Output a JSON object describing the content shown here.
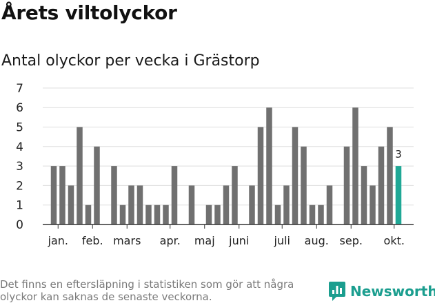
{
  "title": "Årets viltolyckor",
  "subtitle": "Antal olyckor per vecka i Grästorp",
  "footnote": "Det finns en eftersläpning i statistiken som gör att några olyckor kan saknas de senaste veckorna.",
  "brand": {
    "name": "Newsworthy",
    "icon": "newsworthy-logo-icon",
    "color": "#1b9e8f"
  },
  "chart_data": {
    "type": "bar",
    "x": [
      1,
      2,
      3,
      4,
      5,
      6,
      7,
      8,
      9,
      10,
      11,
      12,
      13,
      14,
      15,
      16,
      17,
      18,
      19,
      20,
      21,
      22,
      23,
      24,
      25,
      26,
      27,
      28,
      29,
      30,
      31,
      32,
      33,
      34,
      35,
      36,
      37,
      38,
      39,
      40,
      41
    ],
    "values": [
      3,
      3,
      2,
      5,
      1,
      4,
      0,
      3,
      1,
      2,
      2,
      1,
      1,
      1,
      3,
      0,
      2,
      0,
      1,
      1,
      2,
      3,
      0,
      2,
      5,
      6,
      1,
      2,
      5,
      4,
      1,
      1,
      2,
      0,
      4,
      6,
      3,
      2,
      4,
      5,
      3
    ],
    "ylim": [
      0,
      7
    ],
    "yticks": [
      "0",
      "1",
      "2",
      "3",
      "4",
      "5",
      "6",
      "7"
    ],
    "month_labels": [
      {
        "label": "jan.",
        "week": 1.5
      },
      {
        "label": "feb.",
        "week": 5.5
      },
      {
        "label": "mars",
        "week": 9.5
      },
      {
        "label": "apr.",
        "week": 14.5
      },
      {
        "label": "maj",
        "week": 18.5
      },
      {
        "label": "juni",
        "week": 22.5
      },
      {
        "label": "juli",
        "week": 27.5
      },
      {
        "label": "aug.",
        "week": 31.5
      },
      {
        "label": "sep.",
        "week": 35.5
      },
      {
        "label": "okt.",
        "week": 40.5
      }
    ],
    "highlight_index": 40,
    "highlight_label": "3",
    "grid": true,
    "colors": {
      "bar": "#707070",
      "highlight": "#1fa896",
      "grid": "#dddddd",
      "axis": "#333333"
    }
  }
}
